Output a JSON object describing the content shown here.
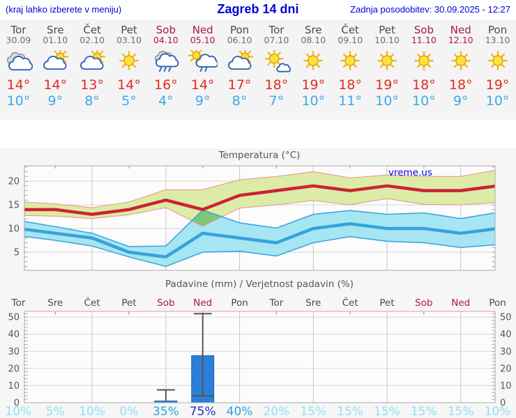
{
  "header": {
    "note": "(kraj lahko izberete v meniju)",
    "title": "Zagreb 14 dni",
    "updated": "Zadnja posodobitev: 30.09.2025 - 12:27"
  },
  "days": [
    {
      "name": "Tor",
      "date": "30.09",
      "icon": "cloudy",
      "tmax": 14,
      "tmin": 10,
      "weekend": false
    },
    {
      "name": "Sre",
      "date": "01.10",
      "icon": "partly",
      "tmax": 14,
      "tmin": 9,
      "weekend": false
    },
    {
      "name": "Čet",
      "date": "02.10",
      "icon": "partly",
      "tmax": 13,
      "tmin": 8,
      "weekend": false
    },
    {
      "name": "Pet",
      "date": "03.10",
      "icon": "sunny",
      "tmax": 14,
      "tmin": 5,
      "weekend": false
    },
    {
      "name": "Sob",
      "date": "04.10",
      "icon": "rain",
      "tmax": 16,
      "tmin": 4,
      "weekend": true
    },
    {
      "name": "Ned",
      "date": "05.10",
      "icon": "sun-rain",
      "tmax": 14,
      "tmin": 9,
      "weekend": true
    },
    {
      "name": "Pon",
      "date": "06.10",
      "icon": "partly",
      "tmax": 17,
      "tmin": 8,
      "weekend": false
    },
    {
      "name": "Tor",
      "date": "07.10",
      "icon": "mostly-sunny",
      "tmax": 18,
      "tmin": 7,
      "weekend": false
    },
    {
      "name": "Sre",
      "date": "08.10",
      "icon": "sunny",
      "tmax": 19,
      "tmin": 10,
      "weekend": false
    },
    {
      "name": "Čet",
      "date": "09.10",
      "icon": "sunny",
      "tmax": 18,
      "tmin": 11,
      "weekend": false
    },
    {
      "name": "Pet",
      "date": "10.10",
      "icon": "sunny",
      "tmax": 19,
      "tmin": 10,
      "weekend": false
    },
    {
      "name": "Sob",
      "date": "11.10",
      "icon": "sunny",
      "tmax": 18,
      "tmin": 10,
      "weekend": true
    },
    {
      "name": "Ned",
      "date": "12.10",
      "icon": "sunny",
      "tmax": 18,
      "tmin": 9,
      "weekend": true
    },
    {
      "name": "Pon",
      "date": "13.10",
      "icon": "sunny",
      "tmax": 19,
      "tmin": 10,
      "weekend": false
    }
  ],
  "chart_data": [
    {
      "type": "line",
      "title": "Temperatura (°C)",
      "watermark": "vreme.us",
      "ylim": [
        1.18,
        23.24
      ],
      "yticks": [
        5,
        10,
        15,
        20
      ],
      "grid_days": [
        2,
        4,
        6,
        8,
        10,
        12
      ],
      "tick_days": [
        1,
        3,
        5,
        7,
        9,
        11,
        13
      ],
      "series": [
        {
          "name": "max temperature",
          "color": "#CC2233",
          "values": [
            14,
            14,
            13,
            14,
            16,
            14,
            17,
            18,
            19,
            18,
            19,
            18,
            18,
            19
          ]
        },
        {
          "name": "min temperature",
          "color": "#36A2DC",
          "values": [
            10,
            9,
            8,
            5,
            4,
            9,
            8,
            7,
            10,
            11,
            10,
            10,
            9,
            10
          ]
        }
      ],
      "bands": [
        {
          "name": "max range",
          "fill": "#DCEBA5",
          "edge": "#E89090",
          "edge_width": 1,
          "upper": [
            15.7,
            15.2,
            14.4,
            15.6,
            18.2,
            18.2,
            20.3,
            21.0,
            22.0,
            20.7,
            21.3,
            21.0,
            21.0,
            22.4
          ],
          "lower": [
            12.8,
            12.6,
            12.1,
            12.9,
            14.4,
            10.5,
            14.3,
            15.0,
            15.9,
            15.0,
            16.3,
            15.1,
            15.0,
            15.5
          ]
        },
        {
          "name": "min range",
          "fill": "#A6E5F2",
          "edge": "#36A2DC",
          "edge_width": 1.5,
          "upper": [
            11.7,
            10.4,
            9.0,
            6.2,
            6.3,
            13.9,
            11.2,
            10.1,
            13.0,
            13.8,
            13.0,
            13.3,
            12.1,
            13.4
          ],
          "lower": [
            8.5,
            7.5,
            6.3,
            4.0,
            2.0,
            5.0,
            5.2,
            4.2,
            7.0,
            8.3,
            7.3,
            7.0,
            6.0,
            6.6
          ]
        }
      ],
      "overlap_fill": "#7CC878"
    },
    {
      "type": "bar",
      "title": "Padavine (mm) / Verjetnost padavin (%)",
      "categories": [
        "Tor",
        "Sre",
        "Čet",
        "Pet",
        "Sob",
        "Ned",
        "Pon",
        "Tor",
        "Sre",
        "Čet",
        "Pet",
        "Sob",
        "Ned",
        "Pon"
      ],
      "weekend_indices": [
        4,
        5,
        11,
        12
      ],
      "values_mm": [
        0,
        0,
        0,
        0,
        1,
        27.5,
        0,
        0,
        0,
        0,
        0,
        0,
        0,
        0
      ],
      "whiskers": [
        {
          "index": 4,
          "from": 1,
          "to": 7.5
        },
        {
          "index": 5,
          "from": 4,
          "to": 52
        }
      ],
      "bar_marks": [
        {
          "index": 5,
          "value": 4
        }
      ],
      "probability_pct": [
        10,
        5,
        10,
        0,
        35,
        75,
        40,
        20,
        15,
        15,
        15,
        15,
        15,
        10
      ],
      "ylim": [
        0,
        53.3
      ],
      "yticks": [
        0,
        10,
        20,
        30,
        40,
        50
      ],
      "grid_days": [
        2,
        4,
        6,
        8,
        10,
        12
      ],
      "tick_days": [
        1,
        3,
        5,
        7,
        9,
        11
      ],
      "bar_color": "#2B7FD9",
      "bar_edge": "#1F66B0",
      "whisker_color": "#555555",
      "prob_colors": {
        "low": "#8FE0F4",
        "mid": "#2F9FE2",
        "high": "#2230BF"
      }
    }
  ],
  "colors": {
    "header_text": "#0000D8",
    "weekend": "#B0134E",
    "day_name": "#4A4A4A",
    "day_date": "#6E6E6E",
    "tmax": "#E22B21",
    "tmin": "#3FA8E8",
    "chart_bg": "#F6F6F6",
    "plot_bg": "#FCFCFC",
    "plot_border": "#A9A9A9",
    "grid": "#D6D6D6",
    "vgrid": "#C6C6C6",
    "precip_top_border": "#EBA9BC",
    "precip_top_tick": "#E2738F",
    "axis_text": "#555555",
    "watermark": "#0000E0"
  }
}
